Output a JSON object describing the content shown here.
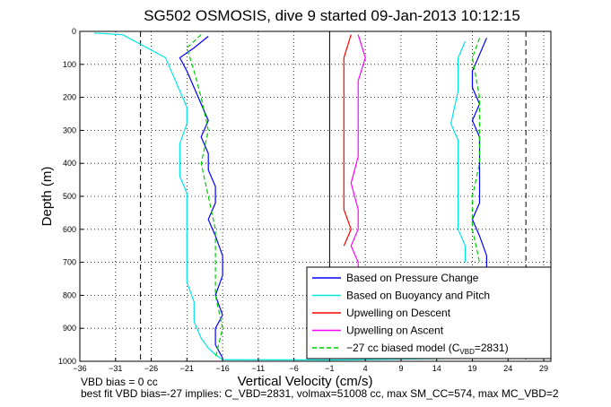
{
  "chart_data": {
    "type": "line",
    "title": "SG502 OSMOSIS, dive 9 started 09-Jan-2013 10:12:15",
    "xlabel": "Vertical Velocity (cm/s)",
    "ylabel": "Depth (m)",
    "xlim": [
      -36,
      30
    ],
    "ylim": [
      1000,
      0
    ],
    "y_reversed": true,
    "grid": "dotted",
    "legend_position": "bottom-right",
    "xticks": [
      -36,
      -31,
      -26,
      -21,
      -16,
      -11,
      -6,
      -1,
      4,
      9,
      14,
      19,
      24,
      29
    ],
    "yticks": [
      0,
      100,
      200,
      300,
      400,
      500,
      600,
      700,
      800,
      900,
      1000
    ],
    "reference_lines": {
      "solid_x": [
        -1
      ],
      "dashed_x": [
        -27.5,
        26.5
      ]
    },
    "series": [
      {
        "name": "Based on Pressure Change",
        "color": "#0000ff",
        "groups": [
          {
            "x": [
              -18,
              -20,
              -22,
              -21,
              -20,
              -19,
              -18,
              -19,
              -18,
              -18,
              -17,
              -17,
              -18,
              -17,
              -16,
              -16,
              -17,
              -16,
              -17,
              -17,
              -16
            ],
            "y": [
              15,
              50,
              80,
              120,
              170,
              220,
              270,
              320,
              370,
              420,
              470,
              520,
              570,
              620,
              680,
              740,
              800,
              860,
              900,
              950,
              990
            ]
          },
          {
            "x": [
              21,
              20,
              19,
              19,
              20,
              19,
              20,
              20,
              20,
              20,
              20,
              19,
              20,
              21,
              21
            ],
            "y": [
              20,
              70,
              120,
              170,
              220,
              270,
              320,
              370,
              420,
              470,
              520,
              570,
              620,
              680,
              720
            ]
          }
        ]
      },
      {
        "name": "Based on Buoyancy and Pitch",
        "color": "#00e5e5",
        "groups": [
          {
            "x": [
              -34,
              -30,
              -24,
              -23,
              -22,
              -21,
              -21,
              -22,
              -22,
              -22,
              -21,
              -21,
              -21,
              -21,
              -21,
              -21,
              -20,
              -20,
              -19,
              -18,
              -17,
              -16,
              0,
              22
            ],
            "y": [
              5,
              10,
              80,
              130,
              180,
              230,
              280,
              340,
              390,
              440,
              490,
              540,
              590,
              640,
              700,
              760,
              820,
              880,
              930,
              960,
              980,
              995,
              996,
              990
            ]
          },
          {
            "x": [
              18,
              17,
              17,
              16,
              17,
              17,
              17,
              17,
              17,
              17,
              18,
              18
            ],
            "y": [
              30,
              80,
              180,
              280,
              330,
              400,
              450,
              500,
              550,
              600,
              650,
              700
            ]
          }
        ]
      },
      {
        "name": "Upwelling on Descent",
        "color": "#ff0000",
        "groups": [
          {
            "x": [
              2,
              1,
              1,
              1,
              1,
              1,
              1,
              1,
              2,
              1
            ],
            "y": [
              10,
              80,
              150,
              220,
              300,
              380,
              460,
              540,
              600,
              650
            ]
          }
        ]
      },
      {
        "name": "Upwelling on Ascent",
        "color": "#ff00ff",
        "groups": [
          {
            "x": [
              3,
              4,
              3,
              3,
              3,
              3,
              2,
              3,
              3,
              2,
              3,
              3,
              3
            ],
            "y": [
              10,
              80,
              150,
              220,
              300,
              380,
              460,
              540,
              600,
              650,
              700,
              730,
              730
            ]
          }
        ]
      },
      {
        "name": "−27 cc biased model (C",
        "name_sub": "VBD",
        "name_tail": "=2831)",
        "color": "#00cc00",
        "dashed": true,
        "groups": [
          {
            "x": [
              -19,
              -21,
              -20,
              -19,
              -18,
              -19,
              -18,
              -17,
              -17,
              -17,
              -16,
              -17
            ],
            "y": [
              10,
              50,
              120,
              200,
              300,
              400,
              500,
              600,
              700,
              800,
              900,
              990
            ]
          },
          {
            "x": [
              20,
              19,
              20,
              20,
              20,
              19,
              19,
              20
            ],
            "y": [
              20,
              80,
              200,
              300,
              400,
              500,
              600,
              700
            ]
          }
        ]
      }
    ]
  },
  "footer": {
    "line1": "VBD bias = 0 cc",
    "line2": "best fit VBD bias=-27 implies: C_VBD=2831, volmax=51008 cc, max SM_CC=574, max MC_VBD=2"
  }
}
